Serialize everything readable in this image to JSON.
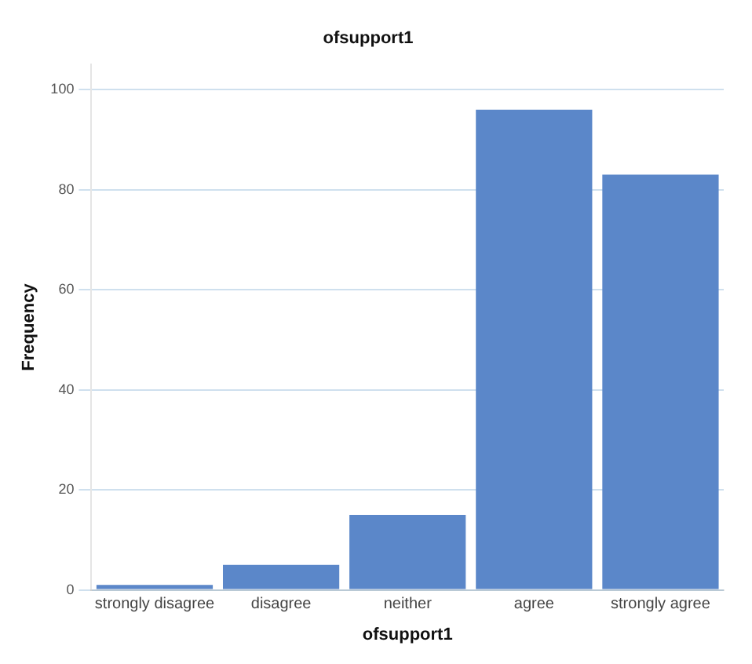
{
  "chart_data": {
    "type": "bar",
    "title": "ofsupport1",
    "xlabel": "ofsupport1",
    "ylabel": "Frequency",
    "categories": [
      "strongly disagree",
      "disagree",
      "neither",
      "agree",
      "strongly agree"
    ],
    "values": [
      1,
      5,
      15,
      96,
      83
    ],
    "color": "#5b87c9",
    "ylim": [
      0,
      105
    ],
    "yticks": [
      0,
      20,
      40,
      60,
      80,
      100
    ],
    "grid": "y"
  }
}
